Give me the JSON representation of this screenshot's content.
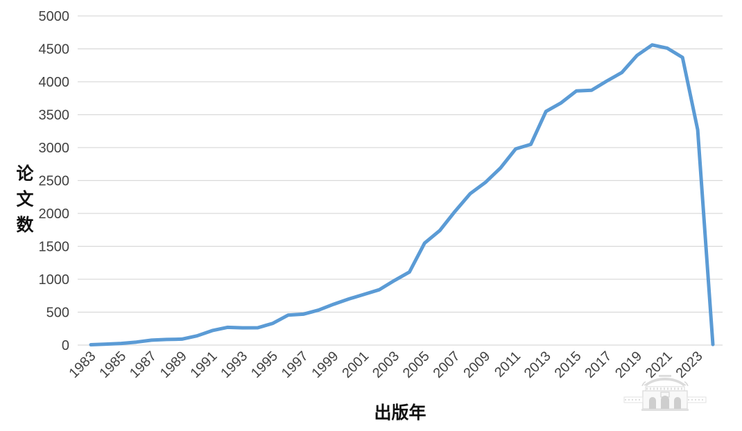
{
  "chart_data": {
    "type": "line",
    "title": "",
    "xlabel": "出版年",
    "ylabel": "论文数",
    "x": [
      1983,
      1984,
      1985,
      1986,
      1987,
      1988,
      1989,
      1990,
      1991,
      1992,
      1993,
      1994,
      1995,
      1996,
      1997,
      1998,
      1999,
      2000,
      2001,
      2002,
      2003,
      2004,
      2005,
      2006,
      2007,
      2008,
      2009,
      2010,
      2011,
      2012,
      2013,
      2014,
      2015,
      2016,
      2017,
      2018,
      2019,
      2020,
      2021,
      2022,
      2023,
      2024
    ],
    "series": [
      {
        "name": "论文数",
        "values": [
          5,
          15,
          25,
          45,
          75,
          85,
          90,
          140,
          220,
          270,
          262,
          263,
          330,
          455,
          470,
          530,
          620,
          700,
          770,
          840,
          980,
          1110,
          1550,
          1740,
          2030,
          2300,
          2470,
          2690,
          2980,
          3050,
          3550,
          3680,
          3860,
          3870,
          4010,
          4140,
          4400,
          4560,
          4510,
          4370,
          3270,
          10
        ]
      }
    ],
    "ylim": [
      0,
      5000
    ],
    "ytick_step": 500,
    "xtick_step": 2,
    "grid": "horizontal",
    "legend": "none",
    "line_color": "#5B9BD5",
    "grid_color": "#D9D9D9",
    "tick_label_color": "#424242",
    "axis_title_color": "#111111"
  },
  "watermark": {
    "name": "chinese-gate-building"
  }
}
